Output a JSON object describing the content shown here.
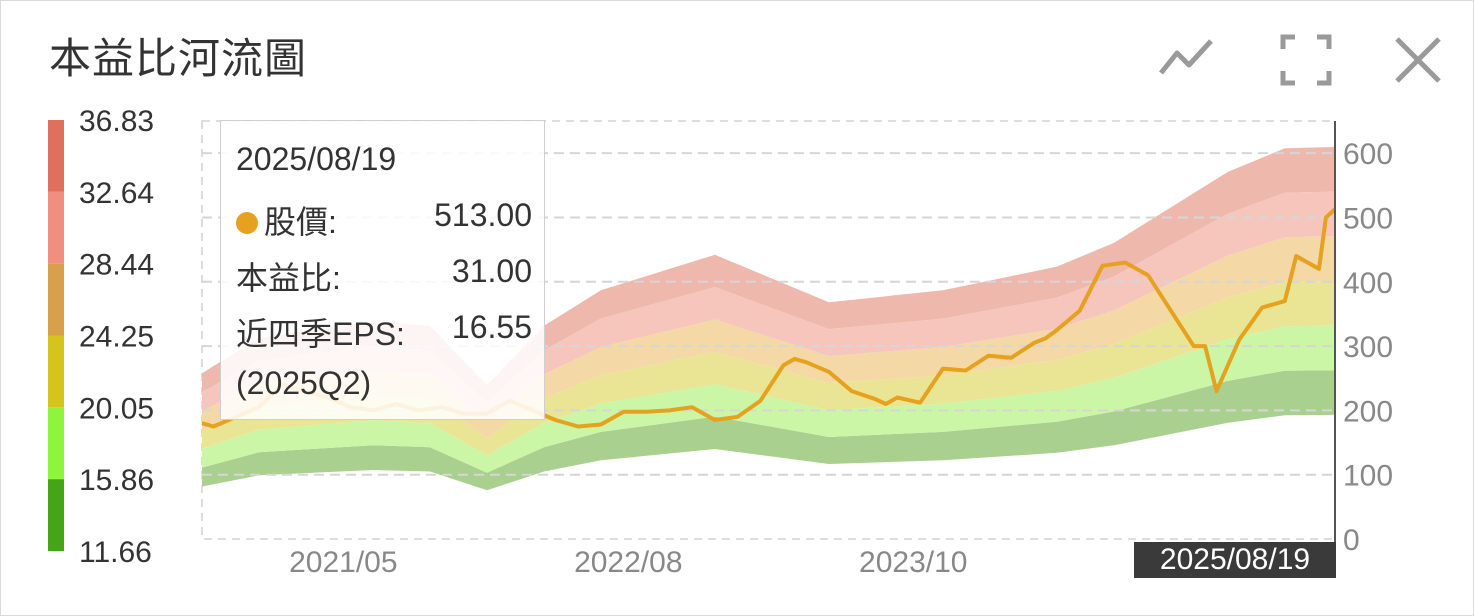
{
  "widget": {
    "title": "本益比河流圖",
    "toolbar": [
      "line-chart-icon",
      "fullscreen-icon",
      "close-icon"
    ]
  },
  "tooltip": {
    "date": "2025/08/19",
    "price_label": "股價:",
    "price_value": "513.00",
    "pe_label": "本益比:",
    "pe_value": "31.00",
    "eps_label": "近四季EPS:",
    "eps_value": "16.55",
    "eps_quarter": "(2025Q2)",
    "price_dot_color": "#e6a21e"
  },
  "crosshair_label": "2025/08/19",
  "chart_data": {
    "type": "area",
    "pe_scale": {
      "labels": [
        "36.83",
        "32.64",
        "28.44",
        "24.25",
        "20.05",
        "15.86",
        "11.66"
      ],
      "colors": [
        "#e0705e",
        "#f08f80",
        "#d8a04a",
        "#d4c41c",
        "#8ff53c",
        "#44a616"
      ]
    },
    "x_ticks": [
      "2021/05",
      "2022/08",
      "2023/10"
    ],
    "y_ticks": [
      0,
      100,
      200,
      300,
      400,
      500,
      600
    ],
    "ylim": [
      0,
      650
    ],
    "xlim": [
      2020.75,
      2025.72
    ],
    "band_colors": [
      "#a9d08e",
      "#caf6a6",
      "#eae594",
      "#f4d8a6",
      "#f6c6bd",
      "#eeb9ac"
    ],
    "bands": {
      "x": [
        2020.75,
        2021.0,
        2021.5,
        2021.75,
        2022.0,
        2022.25,
        2022.5,
        2023.0,
        2023.25,
        2023.5,
        2024.0,
        2024.25,
        2024.5,
        2024.75,
        2025.0,
        2025.25,
        2025.5,
        2025.72
      ],
      "eps": [
        7.0,
        8.5,
        9.2,
        9.0,
        6.5,
        9.0,
        10.5,
        12.0,
        11.0,
        10.0,
        10.5,
        11.0,
        11.5,
        12.5,
        14.0,
        15.5,
        16.5,
        16.55
      ]
    },
    "price": {
      "x": [
        2020.75,
        2020.8,
        2020.9,
        2021.0,
        2021.1,
        2021.2,
        2021.3,
        2021.4,
        2021.5,
        2021.6,
        2021.7,
        2021.8,
        2021.9,
        2022.0,
        2022.1,
        2022.2,
        2022.3,
        2022.4,
        2022.5,
        2022.6,
        2022.7,
        2022.8,
        2022.9,
        2023.0,
        2023.1,
        2023.2,
        2023.3,
        2023.35,
        2023.4,
        2023.5,
        2023.6,
        2023.7,
        2023.75,
        2023.8,
        2023.9,
        2024.0,
        2024.1,
        2024.2,
        2024.3,
        2024.4,
        2024.45,
        2024.5,
        2024.55,
        2024.6,
        2024.7,
        2024.8,
        2024.9,
        2025.0,
        2025.1,
        2025.15,
        2025.2,
        2025.3,
        2025.4,
        2025.5,
        2025.55,
        2025.6,
        2025.65,
        2025.68,
        2025.72
      ],
      "y": [
        180,
        175,
        190,
        205,
        240,
        230,
        220,
        205,
        200,
        210,
        200,
        205,
        195,
        195,
        215,
        200,
        185,
        175,
        178,
        198,
        198,
        200,
        205,
        185,
        190,
        215,
        270,
        280,
        275,
        260,
        230,
        218,
        210,
        220,
        212,
        265,
        262,
        285,
        282,
        305,
        312,
        325,
        340,
        355,
        425,
        430,
        410,
        355,
        300,
        300,
        230,
        310,
        360,
        370,
        440,
        430,
        420,
        500,
        513
      ]
    }
  }
}
